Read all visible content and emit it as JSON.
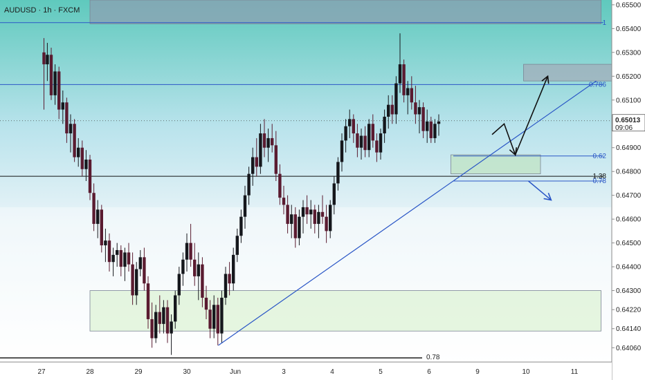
{
  "chart_data": {
    "type": "candlestick",
    "title": "AUDUSD · 1h · FXCM",
    "price_axis": {
      "ticks": [
        "0.65500",
        "0.65400",
        "0.65300",
        "0.65200",
        "0.65100",
        "0.64900",
        "0.64800",
        "0.64700",
        "0.64600",
        "0.64500",
        "0.64400",
        "0.64300",
        "0.64220",
        "0.64140",
        "0.64060"
      ],
      "range": [
        0.64,
        0.6552
      ]
    },
    "time_axis": {
      "ticks": [
        "27",
        "28",
        "29",
        "30",
        "Jun",
        "3",
        "4",
        "5",
        "6",
        "9",
        "10",
        "11"
      ]
    },
    "current_price": {
      "value": "0.65013",
      "countdown": "09:06",
      "price": 0.65013
    },
    "fib_levels": [
      {
        "label": "1",
        "price": 0.65425,
        "color": "#2a56c6"
      },
      {
        "label": "0.786",
        "price": 0.65165,
        "color": "#2a56c6"
      },
      {
        "label": "0.62",
        "price": 0.64865,
        "color": "#2a56c6"
      },
      {
        "label": "1.38",
        "price": 0.6478,
        "color": "#111111"
      },
      {
        "label": "0.78",
        "price": 0.6476,
        "color": "#2a56c6"
      }
    ],
    "bottom_label": "0.78",
    "zones": [
      {
        "name": "top-gray-zone",
        "price_top": 0.6552,
        "price_bottom": 0.6542,
        "day_start": 1.0,
        "day_end": 11.55,
        "fill": "#8e9cb0"
      },
      {
        "name": "target-gray-zone",
        "price_top": 0.6525,
        "price_bottom": 0.6518,
        "day_start": 9.95,
        "day_end": 12.1,
        "fill": "#a3abb8"
      },
      {
        "name": "entry-green-zone",
        "price_top": 0.6487,
        "price_bottom": 0.6479,
        "day_start": 8.45,
        "day_end": 10.3,
        "fill": "#bfe3c0"
      },
      {
        "name": "demand-green-zone",
        "price_top": 0.643,
        "price_bottom": 0.6413,
        "day_start": 1.0,
        "day_end": 11.55,
        "fill": "#dcf2d3"
      }
    ],
    "trendline": {
      "start": {
        "day": 3.65,
        "price": 0.6407
      },
      "end": {
        "day": 11.45,
        "price": 0.6518
      }
    },
    "projection_path": [
      {
        "day": 9.3,
        "price": 0.64955
      },
      {
        "day": 9.55,
        "price": 0.65
      },
      {
        "day": 9.78,
        "price": 0.6487
      },
      {
        "day": 10.45,
        "price": 0.652
      }
    ],
    "alt_projection": [
      {
        "day": 10.05,
        "price": 0.6476
      },
      {
        "day": 10.52,
        "price": 0.6468
      }
    ],
    "candles": [
      {
        "day": 0.05,
        "ohlc": [
          0.653,
          0.6536,
          0.6506,
          0.6525
        ]
      },
      {
        "day": 0.12,
        "ohlc": [
          0.6525,
          0.6534,
          0.6518,
          0.6529
        ]
      },
      {
        "day": 0.2,
        "ohlc": [
          0.6529,
          0.6532,
          0.651,
          0.6512
        ]
      },
      {
        "day": 0.28,
        "ohlc": [
          0.6512,
          0.6525,
          0.6508,
          0.6522
        ]
      },
      {
        "day": 0.36,
        "ohlc": [
          0.6522,
          0.6524,
          0.6502,
          0.6506
        ]
      },
      {
        "day": 0.44,
        "ohlc": [
          0.6506,
          0.6514,
          0.65,
          0.6509
        ]
      },
      {
        "day": 0.52,
        "ohlc": [
          0.6509,
          0.6511,
          0.6492,
          0.6496
        ]
      },
      {
        "day": 0.6,
        "ohlc": [
          0.6496,
          0.6504,
          0.6488,
          0.65
        ]
      },
      {
        "day": 0.68,
        "ohlc": [
          0.65,
          0.6502,
          0.6484,
          0.6486
        ]
      },
      {
        "day": 0.76,
        "ohlc": [
          0.6486,
          0.6494,
          0.6482,
          0.649
        ]
      },
      {
        "day": 0.84,
        "ohlc": [
          0.649,
          0.6493,
          0.6478,
          0.6481
        ]
      },
      {
        "day": 0.92,
        "ohlc": [
          0.6481,
          0.6489,
          0.6476,
          0.6485
        ]
      },
      {
        "day": 1.0,
        "ohlc": [
          0.6485,
          0.6487,
          0.6468,
          0.6471
        ]
      },
      {
        "day": 1.08,
        "ohlc": [
          0.6471,
          0.6475,
          0.6455,
          0.6458
        ]
      },
      {
        "day": 1.16,
        "ohlc": [
          0.6458,
          0.6468,
          0.6452,
          0.6464
        ]
      },
      {
        "day": 1.24,
        "ohlc": [
          0.6464,
          0.6466,
          0.6446,
          0.6449
        ]
      },
      {
        "day": 1.32,
        "ohlc": [
          0.6449,
          0.6456,
          0.6442,
          0.6451
        ]
      },
      {
        "day": 1.4,
        "ohlc": [
          0.6451,
          0.6454,
          0.6438,
          0.6442
        ]
      },
      {
        "day": 1.48,
        "ohlc": [
          0.6442,
          0.6448,
          0.6436,
          0.6445
        ]
      },
      {
        "day": 1.56,
        "ohlc": [
          0.6445,
          0.645,
          0.644,
          0.6447
        ]
      },
      {
        "day": 1.64,
        "ohlc": [
          0.6447,
          0.6449,
          0.6436,
          0.644
        ]
      },
      {
        "day": 1.72,
        "ohlc": [
          0.644,
          0.6448,
          0.6434,
          0.6446
        ]
      },
      {
        "day": 1.8,
        "ohlc": [
          0.6446,
          0.645,
          0.6438,
          0.6441
        ]
      },
      {
        "day": 1.88,
        "ohlc": [
          0.6441,
          0.6446,
          0.6424,
          0.6428
        ]
      },
      {
        "day": 1.96,
        "ohlc": [
          0.6428,
          0.6442,
          0.6424,
          0.6439
        ]
      },
      {
        "day": 2.04,
        "ohlc": [
          0.6439,
          0.6447,
          0.6436,
          0.6444
        ]
      },
      {
        "day": 2.12,
        "ohlc": [
          0.6444,
          0.6448,
          0.643,
          0.6433
        ]
      },
      {
        "day": 2.2,
        "ohlc": [
          0.6433,
          0.6436,
          0.6414,
          0.6418
        ]
      },
      {
        "day": 2.28,
        "ohlc": [
          0.6418,
          0.6425,
          0.6406,
          0.641
        ]
      },
      {
        "day": 2.36,
        "ohlc": [
          0.641,
          0.6424,
          0.6408,
          0.6421
        ]
      },
      {
        "day": 2.44,
        "ohlc": [
          0.6421,
          0.6428,
          0.6412,
          0.6416
        ]
      },
      {
        "day": 2.52,
        "ohlc": [
          0.6416,
          0.6426,
          0.6412,
          0.6423
        ]
      },
      {
        "day": 2.6,
        "ohlc": [
          0.6423,
          0.6426,
          0.6408,
          0.6412
        ]
      },
      {
        "day": 2.68,
        "ohlc": [
          0.6412,
          0.642,
          0.6403,
          0.6417
        ]
      },
      {
        "day": 2.76,
        "ohlc": [
          0.6417,
          0.643,
          0.6414,
          0.6428
        ]
      },
      {
        "day": 2.84,
        "ohlc": [
          0.6428,
          0.644,
          0.6424,
          0.6437
        ]
      },
      {
        "day": 2.92,
        "ohlc": [
          0.6437,
          0.6446,
          0.6432,
          0.6443
        ]
      },
      {
        "day": 3.0,
        "ohlc": [
          0.6443,
          0.6454,
          0.6438,
          0.645
        ]
      },
      {
        "day": 3.08,
        "ohlc": [
          0.645,
          0.6458,
          0.644,
          0.6443
        ]
      },
      {
        "day": 3.16,
        "ohlc": [
          0.6443,
          0.645,
          0.6432,
          0.6436
        ]
      },
      {
        "day": 3.24,
        "ohlc": [
          0.6436,
          0.6446,
          0.6426,
          0.6441
        ]
      },
      {
        "day": 3.32,
        "ohlc": [
          0.6441,
          0.6444,
          0.6423,
          0.6427
        ]
      },
      {
        "day": 3.4,
        "ohlc": [
          0.6427,
          0.6432,
          0.6418,
          0.6422
        ]
      },
      {
        "day": 3.48,
        "ohlc": [
          0.6422,
          0.6426,
          0.641,
          0.6414
        ]
      },
      {
        "day": 3.56,
        "ohlc": [
          0.6414,
          0.6428,
          0.641,
          0.6424
        ]
      },
      {
        "day": 3.64,
        "ohlc": [
          0.6424,
          0.6427,
          0.6407,
          0.6412
        ]
      },
      {
        "day": 3.72,
        "ohlc": [
          0.6412,
          0.643,
          0.6408,
          0.6427
        ]
      },
      {
        "day": 3.8,
        "ohlc": [
          0.6427,
          0.644,
          0.6424,
          0.6437
        ]
      },
      {
        "day": 3.88,
        "ohlc": [
          0.6437,
          0.6442,
          0.6428,
          0.6433
        ]
      },
      {
        "day": 3.96,
        "ohlc": [
          0.6433,
          0.6448,
          0.643,
          0.6445
        ]
      },
      {
        "day": 4.04,
        "ohlc": [
          0.6445,
          0.6456,
          0.6442,
          0.6453
        ]
      },
      {
        "day": 4.12,
        "ohlc": [
          0.6453,
          0.6464,
          0.645,
          0.6461
        ]
      },
      {
        "day": 4.2,
        "ohlc": [
          0.6461,
          0.6474,
          0.6456,
          0.647
        ]
      },
      {
        "day": 4.28,
        "ohlc": [
          0.647,
          0.6482,
          0.6466,
          0.6479
        ]
      },
      {
        "day": 4.36,
        "ohlc": [
          0.6479,
          0.649,
          0.6474,
          0.6486
        ]
      },
      {
        "day": 4.44,
        "ohlc": [
          0.6486,
          0.6494,
          0.6478,
          0.6482
        ]
      },
      {
        "day": 4.52,
        "ohlc": [
          0.6482,
          0.65,
          0.6479,
          0.6496
        ]
      },
      {
        "day": 4.6,
        "ohlc": [
          0.6496,
          0.6502,
          0.6486,
          0.649
        ]
      },
      {
        "day": 4.68,
        "ohlc": [
          0.649,
          0.6498,
          0.6484,
          0.6494
        ]
      },
      {
        "day": 4.76,
        "ohlc": [
          0.6494,
          0.65,
          0.6488,
          0.6491
        ]
      },
      {
        "day": 4.84,
        "ohlc": [
          0.6491,
          0.6497,
          0.6476,
          0.6479
        ]
      },
      {
        "day": 4.92,
        "ohlc": [
          0.6479,
          0.6483,
          0.6466,
          0.6469
        ]
      },
      {
        "day": 5.0,
        "ohlc": [
          0.6469,
          0.6474,
          0.6462,
          0.6466
        ]
      },
      {
        "day": 5.08,
        "ohlc": [
          0.6466,
          0.647,
          0.6454,
          0.6458
        ]
      },
      {
        "day": 5.16,
        "ohlc": [
          0.6458,
          0.6466,
          0.6452,
          0.6462
        ]
      },
      {
        "day": 5.24,
        "ohlc": [
          0.6462,
          0.6465,
          0.6448,
          0.6452
        ]
      },
      {
        "day": 5.32,
        "ohlc": [
          0.6452,
          0.6464,
          0.6449,
          0.6461
        ]
      },
      {
        "day": 5.4,
        "ohlc": [
          0.6461,
          0.6468,
          0.6454,
          0.6465
        ]
      },
      {
        "day": 5.48,
        "ohlc": [
          0.6465,
          0.647,
          0.6458,
          0.6462
        ]
      },
      {
        "day": 5.56,
        "ohlc": [
          0.6462,
          0.6468,
          0.6456,
          0.6464
        ]
      },
      {
        "day": 5.64,
        "ohlc": [
          0.6464,
          0.6466,
          0.6454,
          0.6458
        ]
      },
      {
        "day": 5.72,
        "ohlc": [
          0.6458,
          0.6466,
          0.6452,
          0.6463
        ]
      },
      {
        "day": 5.8,
        "ohlc": [
          0.6463,
          0.647,
          0.6458,
          0.6461
        ]
      },
      {
        "day": 5.88,
        "ohlc": [
          0.6461,
          0.6466,
          0.645,
          0.6455
        ]
      },
      {
        "day": 5.96,
        "ohlc": [
          0.6455,
          0.6468,
          0.6452,
          0.6466
        ]
      },
      {
        "day": 6.04,
        "ohlc": [
          0.6466,
          0.6478,
          0.6462,
          0.6475
        ]
      },
      {
        "day": 6.12,
        "ohlc": [
          0.6475,
          0.6486,
          0.6472,
          0.6484
        ]
      },
      {
        "day": 6.2,
        "ohlc": [
          0.6484,
          0.6496,
          0.648,
          0.6493
        ]
      },
      {
        "day": 6.28,
        "ohlc": [
          0.6493,
          0.6502,
          0.6488,
          0.6499
        ]
      },
      {
        "day": 6.36,
        "ohlc": [
          0.6499,
          0.6506,
          0.6494,
          0.6502
        ]
      },
      {
        "day": 6.44,
        "ohlc": [
          0.6502,
          0.6504,
          0.6492,
          0.6496
        ]
      },
      {
        "day": 6.52,
        "ohlc": [
          0.6496,
          0.65,
          0.6486,
          0.649
        ]
      },
      {
        "day": 6.6,
        "ohlc": [
          0.649,
          0.6498,
          0.6485,
          0.6495
        ]
      },
      {
        "day": 6.68,
        "ohlc": [
          0.6495,
          0.6499,
          0.6486,
          0.6489
        ]
      },
      {
        "day": 6.76,
        "ohlc": [
          0.6489,
          0.6502,
          0.6486,
          0.65
        ]
      },
      {
        "day": 6.84,
        "ohlc": [
          0.65,
          0.6504,
          0.649,
          0.6493
        ]
      },
      {
        "day": 6.92,
        "ohlc": [
          0.6493,
          0.6496,
          0.6484,
          0.6488
        ]
      },
      {
        "day": 7.0,
        "ohlc": [
          0.6488,
          0.6498,
          0.6485,
          0.6496
        ]
      },
      {
        "day": 7.08,
        "ohlc": [
          0.6496,
          0.6506,
          0.6492,
          0.6503
        ]
      },
      {
        "day": 7.16,
        "ohlc": [
          0.6503,
          0.6512,
          0.6498,
          0.6508
        ]
      },
      {
        "day": 7.24,
        "ohlc": [
          0.6508,
          0.6512,
          0.65,
          0.6504
        ]
      },
      {
        "day": 7.32,
        "ohlc": [
          0.6504,
          0.652,
          0.65,
          0.6517
        ]
      },
      {
        "day": 7.4,
        "ohlc": [
          0.6517,
          0.6538,
          0.6513,
          0.6525
        ]
      },
      {
        "day": 7.48,
        "ohlc": [
          0.6525,
          0.6527,
          0.6509,
          0.6512
        ]
      },
      {
        "day": 7.56,
        "ohlc": [
          0.6512,
          0.6518,
          0.6504,
          0.6515
        ]
      },
      {
        "day": 7.64,
        "ohlc": [
          0.6515,
          0.652,
          0.6506,
          0.6509
        ]
      },
      {
        "day": 7.72,
        "ohlc": [
          0.6509,
          0.6516,
          0.65,
          0.6504
        ]
      },
      {
        "day": 7.8,
        "ohlc": [
          0.6504,
          0.651,
          0.6496,
          0.6507
        ]
      },
      {
        "day": 7.88,
        "ohlc": [
          0.6507,
          0.6509,
          0.6494,
          0.6497
        ]
      },
      {
        "day": 7.96,
        "ohlc": [
          0.6497,
          0.6506,
          0.6492,
          0.6501
        ]
      },
      {
        "day": 8.04,
        "ohlc": [
          0.6501,
          0.6503,
          0.6492,
          0.6494
        ]
      },
      {
        "day": 8.12,
        "ohlc": [
          0.6494,
          0.6502,
          0.6492,
          0.65
        ]
      },
      {
        "day": 8.2,
        "ohlc": [
          0.65,
          0.6504,
          0.6495,
          0.6501
        ]
      }
    ]
  }
}
